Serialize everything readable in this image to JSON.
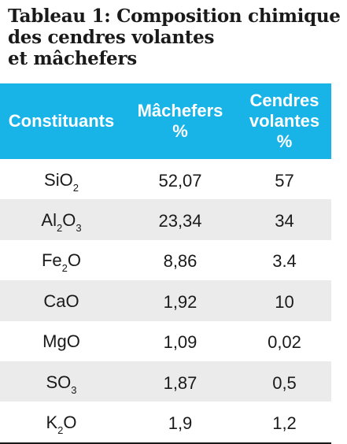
{
  "caption": {
    "line1": "Tableau 1: Composition chimique",
    "line2": "des cendres volantes",
    "line3": "et mâchefers"
  },
  "table": {
    "headers": {
      "col1": "Constituants",
      "col2_line1": "Mâchefers",
      "col2_line2": "%",
      "col3_line1": "Cendres",
      "col3_line2": "volantes",
      "col3_line3": "%"
    },
    "rows": [
      {
        "formula": [
          {
            "t": "SiO"
          },
          {
            "s": "2"
          }
        ],
        "formula_text": "SiO2",
        "machefers": "52,07",
        "cendres": "57"
      },
      {
        "formula": [
          {
            "t": "Al"
          },
          {
            "s": "2"
          },
          {
            "t": "O"
          },
          {
            "s": "3"
          }
        ],
        "formula_text": "Al2O3",
        "machefers": "23,34",
        "cendres": "34"
      },
      {
        "formula": [
          {
            "t": "Fe"
          },
          {
            "s": "2"
          },
          {
            "t": "O"
          }
        ],
        "formula_text": "Fe2O",
        "machefers": "8,86",
        "cendres": "3.4"
      },
      {
        "formula": [
          {
            "t": "CaO"
          }
        ],
        "formula_text": "CaO",
        "machefers": "1,92",
        "cendres": "10"
      },
      {
        "formula": [
          {
            "t": "MgO"
          }
        ],
        "formula_text": "MgO",
        "machefers": "1,09",
        "cendres": "0,02"
      },
      {
        "formula": [
          {
            "t": "SO"
          },
          {
            "s": "3"
          }
        ],
        "formula_text": "SO3",
        "machefers": "1,87",
        "cendres": "0,5"
      },
      {
        "formula": [
          {
            "t": "K"
          },
          {
            "s": "2"
          },
          {
            "t": "O"
          }
        ],
        "formula_text": "K2O",
        "machefers": "1,9",
        "cendres": "1,2"
      }
    ]
  },
  "colors": {
    "header_bg": "#18b4e8",
    "header_text": "#ffffff",
    "alt_row_bg": "#ebebeb",
    "text": "#1a1a1a"
  }
}
